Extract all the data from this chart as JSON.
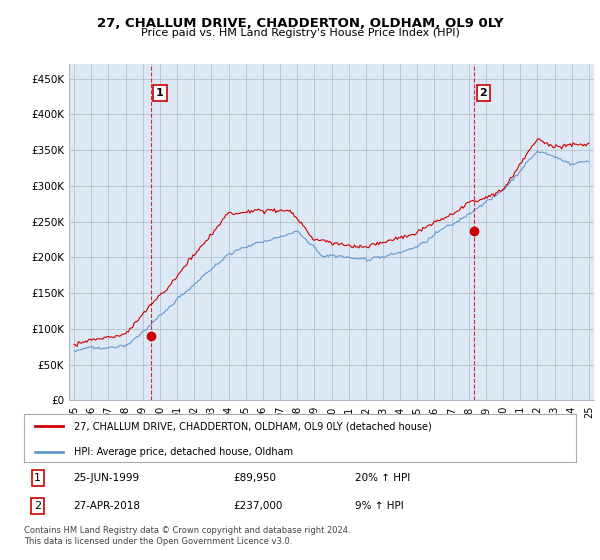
{
  "title": "27, CHALLUM DRIVE, CHADDERTON, OLDHAM, OL9 0LY",
  "subtitle": "Price paid vs. HM Land Registry's House Price Index (HPI)",
  "ylabel_ticks": [
    "£0",
    "£50K",
    "£100K",
    "£150K",
    "£200K",
    "£250K",
    "£300K",
    "£350K",
    "£400K",
    "£450K"
  ],
  "ytick_values": [
    0,
    50000,
    100000,
    150000,
    200000,
    250000,
    300000,
    350000,
    400000,
    450000
  ],
  "ylim": [
    0,
    470000
  ],
  "xlim_left": 1994.7,
  "xlim_right": 2025.3,
  "sale1_x": 1999.48,
  "sale1_price": 89950,
  "sale2_x": 2018.32,
  "sale2_price": 237000,
  "legend_house": "27, CHALLUM DRIVE, CHADDERTON, OLDHAM, OL9 0LY (detached house)",
  "legend_hpi": "HPI: Average price, detached house, Oldham",
  "footer": "Contains HM Land Registry data © Crown copyright and database right 2024.\nThis data is licensed under the Open Government Licence v3.0.",
  "color_red": "#cc0000",
  "color_blue": "#6699cc",
  "chart_bg": "#dde8f5",
  "background_color": "#ffffff",
  "grid_color": "#b0b8c8"
}
